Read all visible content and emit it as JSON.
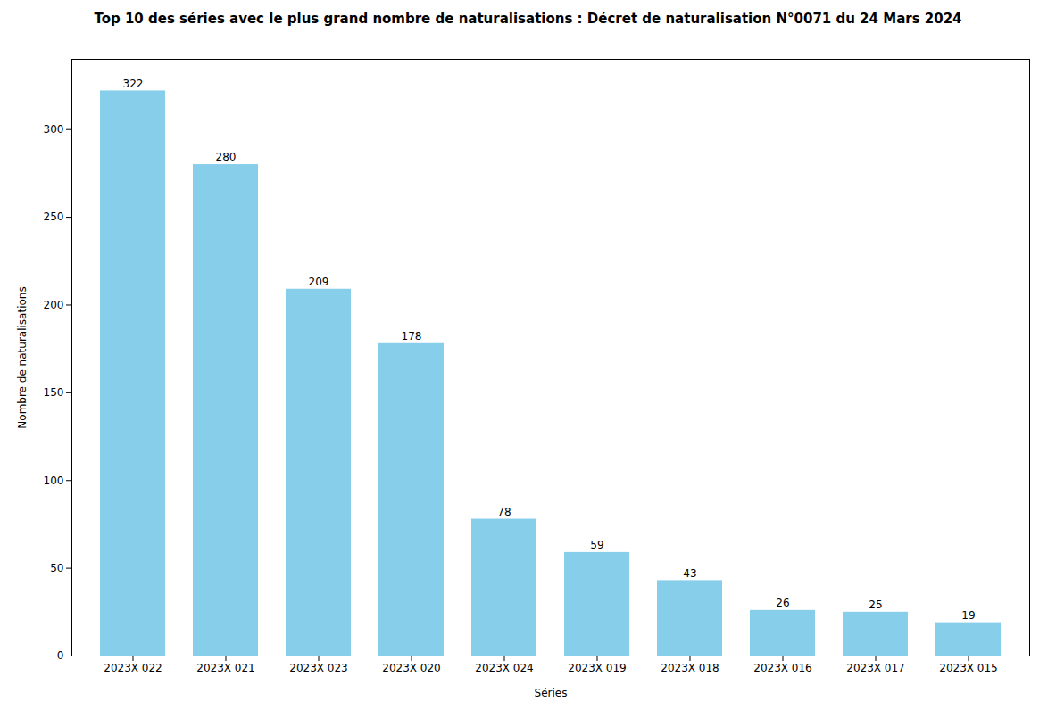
{
  "chart_data": {
    "type": "bar",
    "title": "Top 10 des séries avec le plus grand nombre de naturalisations : Décret de naturalisation N°0071 du 24 Mars 2024",
    "xlabel": "Séries",
    "ylabel": "Nombre de naturalisations",
    "categories": [
      "2023X 022",
      "2023X 021",
      "2023X 023",
      "2023X 020",
      "2023X 024",
      "2023X 019",
      "2023X 018",
      "2023X 016",
      "2023X 017",
      "2023X 015"
    ],
    "values": [
      322,
      280,
      209,
      178,
      78,
      59,
      43,
      26,
      25,
      19
    ],
    "color": "#87CEEB",
    "ylim": [
      0,
      340
    ],
    "yticks": [
      0,
      50,
      100,
      150,
      200,
      250,
      300
    ],
    "grid": false,
    "data_labels": true
  }
}
